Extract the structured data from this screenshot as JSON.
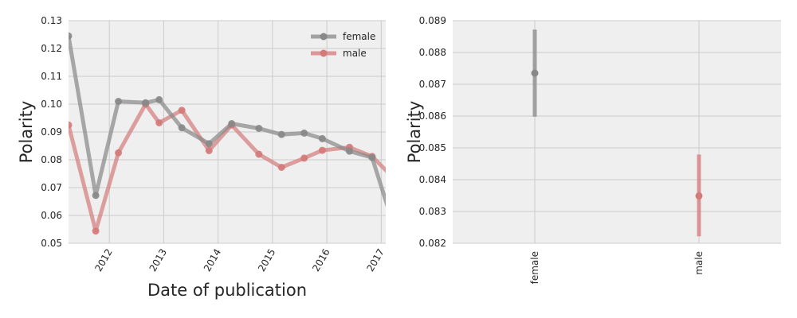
{
  "colors": {
    "female": "#888888",
    "male": "#d47a7a",
    "panel_bg": "#efefef",
    "grid": "#cbcbcb"
  },
  "chart_data": [
    {
      "type": "line",
      "xlabel": "Date of publication",
      "ylabel": "Polarity",
      "x_ticks": [
        "2012",
        "2013",
        "2014",
        "2015",
        "2016",
        "2017"
      ],
      "y_ticks": [
        "0.05",
        "0.06",
        "0.07",
        "0.08",
        "0.09",
        "0.10",
        "0.11",
        "0.12",
        "0.13"
      ],
      "xlim": [
        "2011-04",
        "2017-02"
      ],
      "ylim": [
        0.05,
        0.13
      ],
      "grid": true,
      "legend": "top-right",
      "series": [
        {
          "name": "female",
          "x": [
            "2011-04",
            "2011-10",
            "2012-03",
            "2012-09",
            "2012-12",
            "2013-05",
            "2013-11",
            "2014-04",
            "2014-10",
            "2015-03",
            "2015-08",
            "2015-12",
            "2016-06",
            "2016-11",
            "2017-04"
          ],
          "values": [
            0.1245,
            0.0672,
            0.101,
            0.1005,
            0.1016,
            0.0915,
            0.0858,
            0.093,
            0.0913,
            0.0891,
            0.0896,
            0.0876,
            0.0831,
            0.0808,
            0.055
          ]
        },
        {
          "name": "male",
          "x": [
            "2011-04",
            "2011-10",
            "2012-03",
            "2012-09",
            "2012-12",
            "2013-05",
            "2013-11",
            "2014-04",
            "2014-10",
            "2015-03",
            "2015-08",
            "2015-12",
            "2016-06",
            "2016-11",
            "2017-04"
          ],
          "values": [
            0.0925,
            0.0544,
            0.0825,
            0.1,
            0.0933,
            0.0978,
            0.0833,
            0.0925,
            0.082,
            0.0773,
            0.0806,
            0.0834,
            0.0845,
            0.0812,
            0.073
          ]
        }
      ]
    },
    {
      "type": "point",
      "xlabel": "",
      "ylabel": "Polarity",
      "categories": [
        "female",
        "male"
      ],
      "values": [
        0.08735,
        0.08349
      ],
      "ci_low": [
        0.08598,
        0.08222
      ],
      "ci_high": [
        0.08872,
        0.08479
      ],
      "y_ticks": [
        "0.082",
        "0.083",
        "0.084",
        "0.085",
        "0.086",
        "0.087",
        "0.088",
        "0.089"
      ],
      "ylim": [
        0.082,
        0.089
      ],
      "grid": true
    }
  ]
}
